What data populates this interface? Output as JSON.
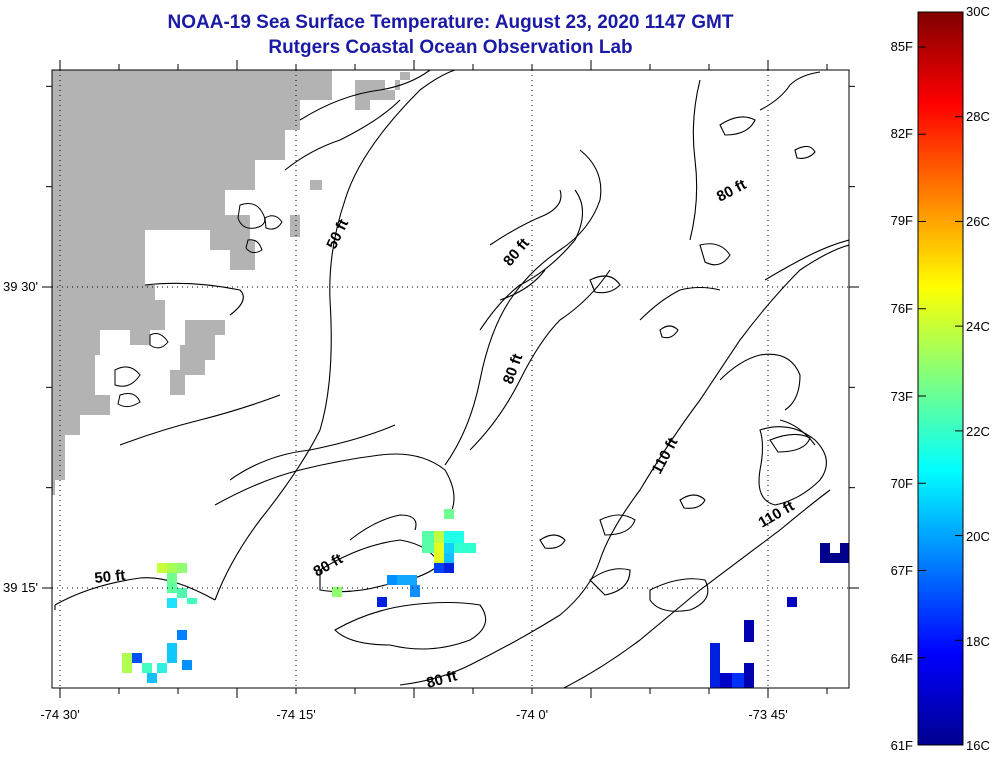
{
  "header": {
    "title_line1": "NOAA-19 Sea Surface Temperature:  August 23, 2020 1147 GMT",
    "title_line2": "Rutgers Coastal Ocean Observation Lab"
  },
  "axes": {
    "lon_labels": [
      "-74 30'",
      "-74 15'",
      "-74 0'",
      "-73 45'"
    ],
    "lat_labels": [
      "39 30'",
      "39 15'"
    ]
  },
  "contours": {
    "labels": [
      "50 ft",
      "50 ft",
      "80 ft",
      "80 ft",
      "80 ft",
      "80 ft",
      "80 ft",
      "110 ft",
      "110 ft"
    ]
  },
  "colorbar": {
    "celsius": [
      "30C",
      "28C",
      "26C",
      "24C",
      "22C",
      "20C",
      "18C",
      "16C"
    ],
    "fahrenheit": [
      "85F",
      "82F",
      "79F",
      "76F",
      "73F",
      "70F",
      "67F",
      "64F",
      "61F"
    ],
    "range_c": [
      16,
      30
    ]
  },
  "colors": {
    "land": "#b3b3b3",
    "title": "#1a1aa6"
  }
}
